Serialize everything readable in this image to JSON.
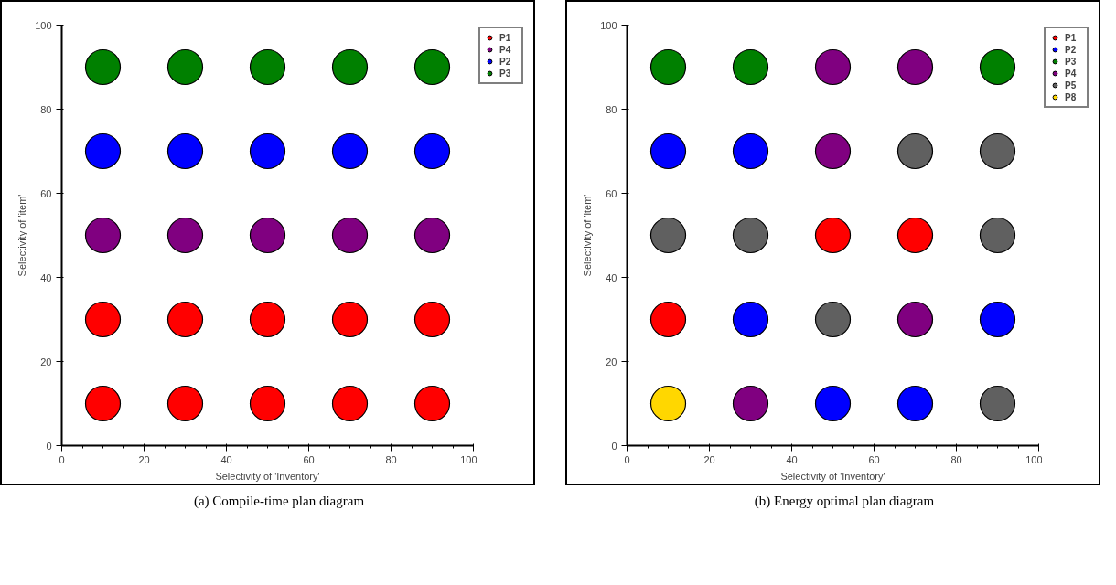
{
  "chart_data": [
    {
      "type": "scatter",
      "xlabel": "Selectivity of 'Inventory'",
      "ylabel": "Selectivity of 'item'",
      "xlim": [
        0,
        100
      ],
      "ylim": [
        0,
        100
      ],
      "xticks": [
        0,
        20,
        40,
        60,
        80,
        100
      ],
      "yticks": [
        0,
        20,
        40,
        60,
        80,
        100
      ],
      "grid": false,
      "legend": "top right",
      "marker": "circle",
      "annotations": [
        "(a) Compile-time plan diagram"
      ],
      "series": [
        {
          "name": "P1",
          "color": "#ff0000",
          "x": [
            10,
            30,
            50,
            70,
            90,
            10,
            30,
            50,
            70,
            90
          ],
          "values": [
            10,
            10,
            10,
            10,
            10,
            30,
            30,
            30,
            30,
            30
          ]
        },
        {
          "name": "P4",
          "color": "#800080",
          "x": [
            10,
            30,
            50,
            70,
            90
          ],
          "values": [
            50,
            50,
            50,
            50,
            50
          ]
        },
        {
          "name": "P2",
          "color": "#0000ff",
          "x": [
            10,
            30,
            50,
            70,
            90
          ],
          "values": [
            70,
            70,
            70,
            70,
            70
          ]
        },
        {
          "name": "P3",
          "color": "#008000",
          "x": [
            10,
            30,
            50,
            70,
            90
          ],
          "values": [
            90,
            90,
            90,
            90,
            90
          ]
        }
      ]
    },
    {
      "type": "scatter",
      "xlabel": "Selectivity of 'Inventory'",
      "ylabel": "Selectivity of 'item'",
      "xlim": [
        0,
        100
      ],
      "ylim": [
        0,
        100
      ],
      "xticks": [
        0,
        20,
        40,
        60,
        80,
        100
      ],
      "yticks": [
        0,
        20,
        40,
        60,
        80,
        100
      ],
      "grid": false,
      "legend": "top right",
      "marker": "circle",
      "annotations": [
        "(b) Energy optimal plan diagram"
      ],
      "series": [
        {
          "name": "P1",
          "color": "#ff0000",
          "x": [
            50,
            70,
            10
          ],
          "values": [
            50,
            50,
            30
          ]
        },
        {
          "name": "P2",
          "color": "#0000ff",
          "x": [
            10,
            30,
            30,
            90,
            50,
            70
          ],
          "values": [
            70,
            70,
            30,
            30,
            10,
            10
          ]
        },
        {
          "name": "P3",
          "color": "#008000",
          "x": [
            10,
            30,
            90
          ],
          "values": [
            90,
            90,
            90
          ]
        },
        {
          "name": "P4",
          "color": "#800080",
          "x": [
            50,
            70,
            50,
            70,
            30
          ],
          "values": [
            90,
            90,
            70,
            30,
            10
          ]
        },
        {
          "name": "P5",
          "color": "#606060",
          "x": [
            70,
            90,
            10,
            30,
            90,
            50,
            90
          ],
          "values": [
            70,
            70,
            50,
            50,
            50,
            30,
            10
          ]
        },
        {
          "name": "P8",
          "color": "#ffd700",
          "x": [
            10
          ],
          "values": [
            10
          ]
        }
      ]
    }
  ]
}
